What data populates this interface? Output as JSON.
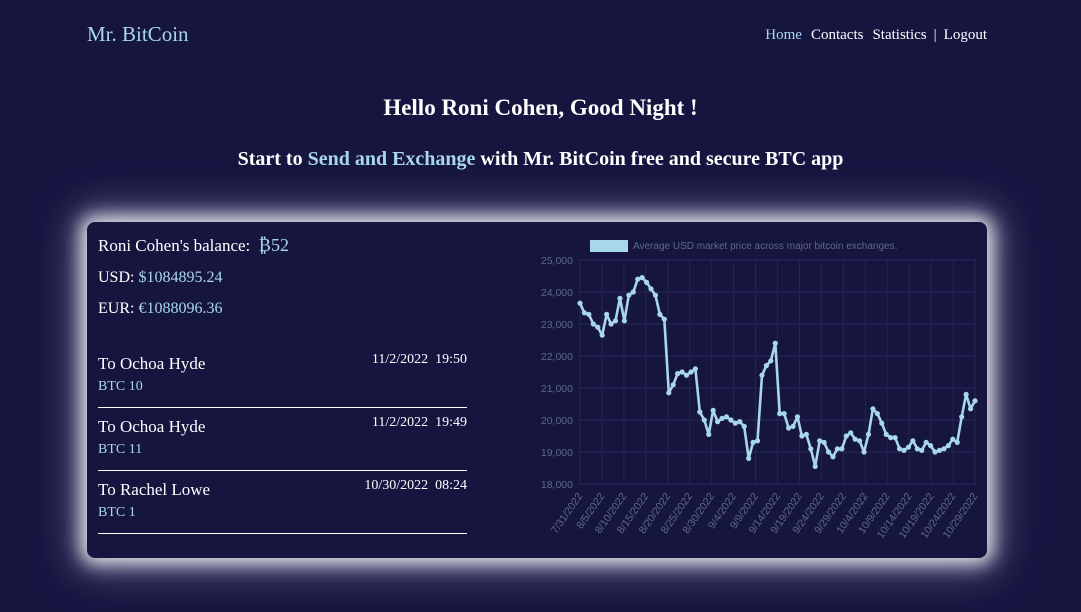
{
  "header": {
    "logo": "Mr. BitCoin",
    "nav": {
      "home": "Home",
      "contacts": "Contacts",
      "statistics": "Statistics",
      "separator": "|",
      "logout": "Logout"
    },
    "accent_color": "#a9d7ea"
  },
  "greeting": "Hello Roni Cohen, Good Night !",
  "tagline": {
    "pre": "Start to ",
    "highlight": "Send and Exchange",
    "post": " with Mr. BitCoin free and secure BTC app"
  },
  "balance": {
    "label": "Roni Cohen's balance:",
    "btc": "₿52",
    "usd_label": "USD:",
    "usd_value": "$1084895.24",
    "eur_label": "EUR:",
    "eur_value": "€1088096.36"
  },
  "transactions": [
    {
      "to": "To Ochoa Hyde",
      "datetime": "11/2/2022  19:50",
      "amount": "BTC 10"
    },
    {
      "to": "To Ochoa Hyde",
      "datetime": "11/2/2022  19:49",
      "amount": "BTC 11"
    },
    {
      "to": "To Rachel Lowe",
      "datetime": "10/30/2022  08:24",
      "amount": "BTC 1"
    }
  ],
  "chart_data": {
    "type": "line",
    "legend": "Average USD market price across major bitcoin exchanges.",
    "legend_position": "top",
    "ylim": [
      18000,
      25000
    ],
    "y_ticks": [
      "25,000",
      "24,000",
      "23,000",
      "22,000",
      "21,000",
      "20,000",
      "19,000",
      "18,000"
    ],
    "x_tick_labels": [
      "7/31/2022",
      "8/5/2022",
      "8/10/2022",
      "8/15/2022",
      "8/20/2022",
      "8/25/2022",
      "8/30/2022",
      "9/4/2022",
      "9/9/2022",
      "9/14/2022",
      "9/19/2022",
      "9/24/2022",
      "9/29/2022",
      "10/4/2022",
      "10/9/2022",
      "10/14/2022",
      "10/19/2022",
      "10/24/2022",
      "10/29/2022"
    ],
    "grid": true,
    "line_color": "#a9d7ea",
    "series": [
      {
        "values": [
          23650,
          23350,
          23300,
          23000,
          22900,
          22650,
          23300,
          23000,
          23100,
          23800,
          23100,
          23900,
          24000,
          24400,
          24450,
          24300,
          24100,
          23900,
          23300,
          23150,
          20850,
          21100,
          21450,
          21500,
          21400,
          21500,
          21600,
          20250,
          20000,
          19550,
          20300,
          19950,
          20050,
          20100,
          20000,
          19900,
          19950,
          19800,
          18800,
          19300,
          19350,
          21400,
          21700,
          21850,
          22400,
          20200,
          20200,
          19750,
          19800,
          20100,
          19500,
          19550,
          19100,
          18550,
          19350,
          19300,
          19000,
          18850,
          19100,
          19100,
          19500,
          19600,
          19400,
          19350,
          19000,
          19550,
          20350,
          20200,
          19900,
          19550,
          19450,
          19450,
          19100,
          19050,
          19150,
          19350,
          19100,
          19050,
          19300,
          19200,
          19000,
          19050,
          19100,
          19200,
          19400,
          19300,
          20100,
          20800,
          20350,
          20600
        ]
      }
    ]
  }
}
